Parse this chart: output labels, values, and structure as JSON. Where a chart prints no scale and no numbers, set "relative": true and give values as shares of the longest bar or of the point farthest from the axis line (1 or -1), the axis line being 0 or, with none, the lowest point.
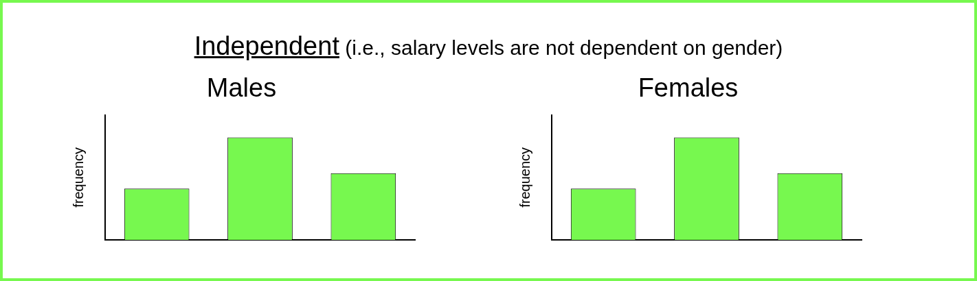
{
  "chart_data": [
    {
      "type": "bar",
      "title": "Males",
      "ylabel": "frequency",
      "annotations": [
        "Independent (i.e., salary levels are not dependent on gender)"
      ],
      "categories": [
        null,
        null,
        null
      ],
      "values": [
        0.5,
        1,
        0.65
      ],
      "color": "#77f84f",
      "relative": true,
      "tick_labels": false
    },
    {
      "type": "bar",
      "title": "Females",
      "ylabel": "frequency",
      "categories": [
        null,
        null,
        null
      ],
      "values": [
        0.5,
        1,
        0.65
      ],
      "color": "#77f84f",
      "relative": true,
      "tick_labels": false
    }
  ]
}
